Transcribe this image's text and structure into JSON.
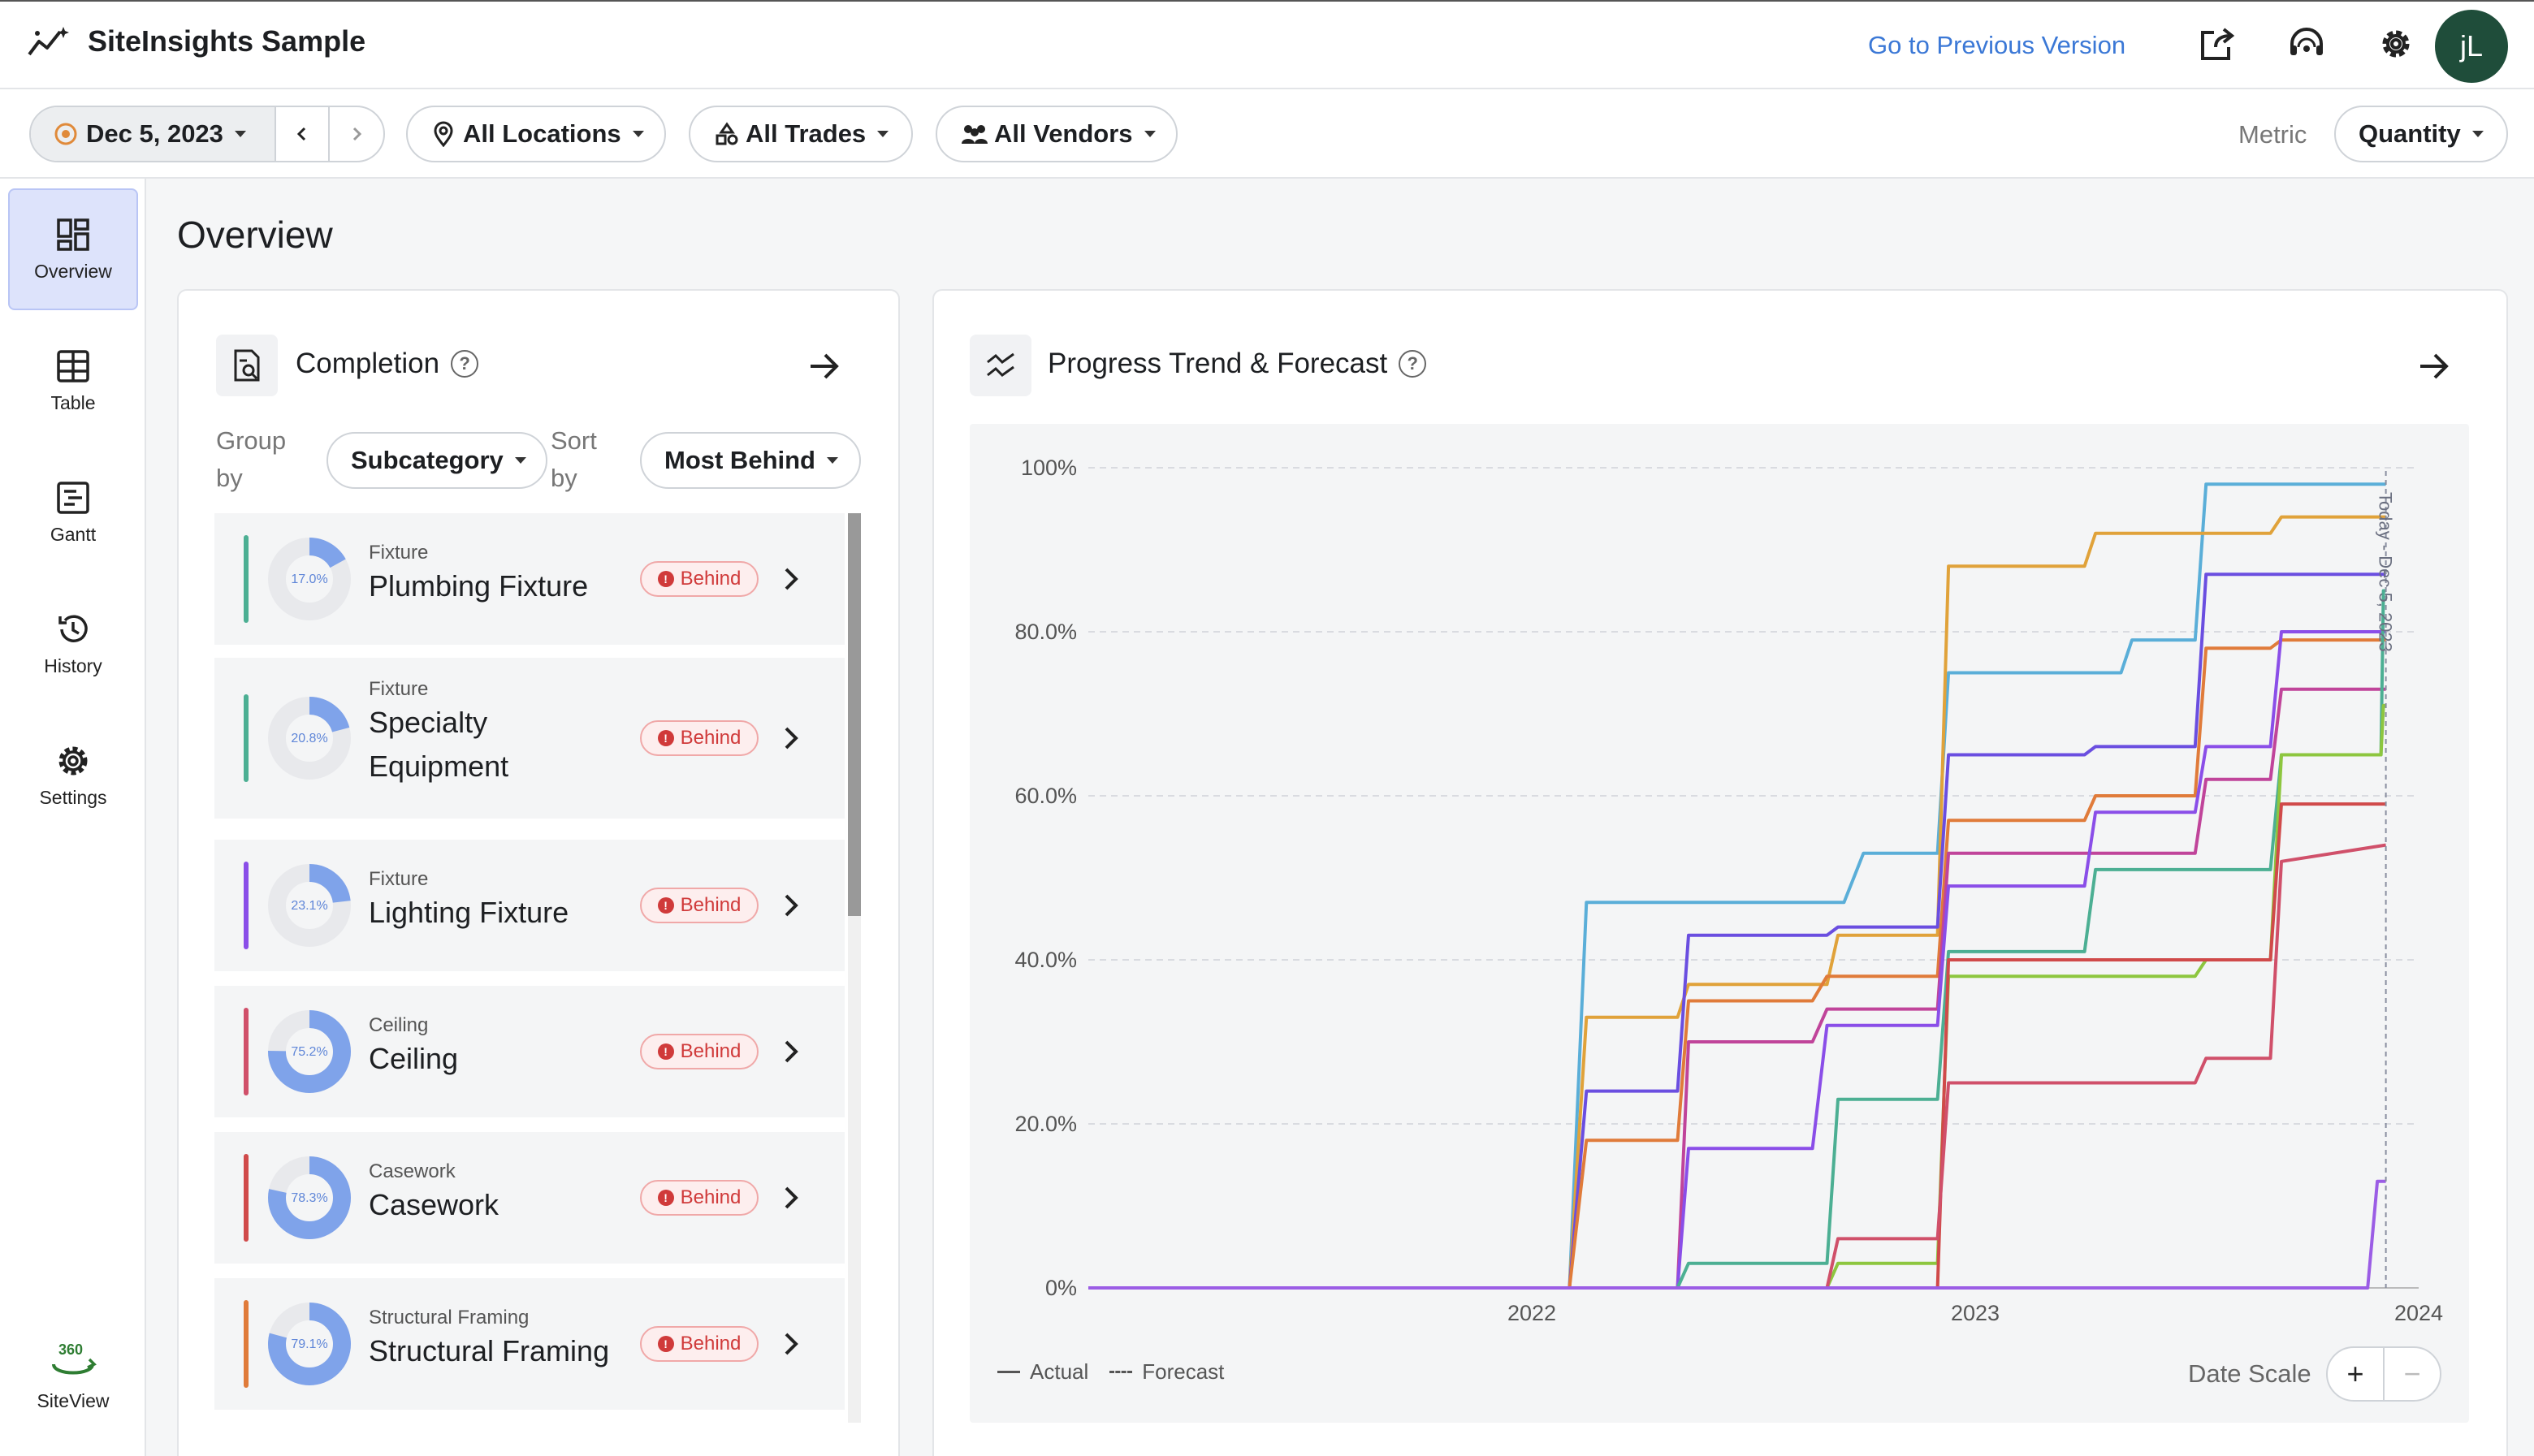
{
  "header": {
    "app_title": "SiteInsights Sample",
    "prev_version_link": "Go to Previous Version",
    "avatar_initials": "jL"
  },
  "filters": {
    "date": "Dec 5, 2023",
    "locations": "All Locations",
    "trades": "All Trades",
    "vendors": "All Vendors",
    "metric_label": "Metric",
    "metric_value": "Quantity"
  },
  "sidebar": {
    "items": [
      {
        "label": "Overview",
        "icon": "dashboard-icon",
        "active": true
      },
      {
        "label": "Table",
        "icon": "table-icon"
      },
      {
        "label": "Gantt",
        "icon": "gantt-icon"
      },
      {
        "label": "History",
        "icon": "history-icon"
      },
      {
        "label": "Settings",
        "icon": "gear-icon"
      }
    ],
    "siteview_label": "SiteView",
    "siteview_badge": "360"
  },
  "page": {
    "title": "Overview"
  },
  "completion": {
    "title": "Completion",
    "group_by_label_1": "Group",
    "group_by_label_2": "by",
    "group_by_value": "Subcategory",
    "sort_by_label_1": "Sort",
    "sort_by_label_2": "by",
    "sort_by_value": "Most Behind",
    "status_label": "Behind",
    "rows": [
      {
        "category": "Fixture",
        "name_lines": [
          "Plumbing Fixture"
        ],
        "percent": "17.0%",
        "value": 17.0,
        "color": "#4caf93"
      },
      {
        "category": "Fixture",
        "name_lines": [
          "Specialty",
          "Equipment"
        ],
        "percent": "20.8%",
        "value": 20.8,
        "color": "#4caf93"
      },
      {
        "category": "Fixture",
        "name_lines": [
          "Lighting Fixture"
        ],
        "percent": "23.1%",
        "value": 23.1,
        "color": "#8a4ee8"
      },
      {
        "category": "Ceiling",
        "name_lines": [
          "Ceiling"
        ],
        "percent": "75.2%",
        "value": 75.2,
        "color": "#d0506a"
      },
      {
        "category": "Casework",
        "name_lines": [
          "Casework"
        ],
        "percent": "78.3%",
        "value": 78.3,
        "color": "#d04a4a"
      },
      {
        "category": "Structural Framing",
        "name_lines": [
          "Structural Framing"
        ],
        "percent": "79.1%",
        "value": 79.1,
        "color": "#e07b3a"
      }
    ]
  },
  "trend": {
    "title": "Progress Trend & Forecast",
    "legend_actual": "Actual",
    "legend_forecast": "Forecast",
    "date_scale_label": "Date Scale",
    "zoom_in": "+",
    "zoom_out": "−",
    "today_label": "Today - Dec 5, 2023"
  },
  "chart_data": {
    "type": "line",
    "step": true,
    "x_ticks": [
      "2022",
      "2023",
      "2024"
    ],
    "xlim": [
      "2021-01-01",
      "2024-01-01"
    ],
    "y_ticks": [
      "0%",
      "20.0%",
      "40.0%",
      "60.0%",
      "80.0%",
      "100%"
    ],
    "ylim": [
      0,
      100
    ],
    "grid": true,
    "today": "2023-12-05",
    "series": [
      {
        "color": "#5aaed8",
        "points": [
          [
            "2021-01-01",
            0
          ],
          [
            "2022-02-01",
            0
          ],
          [
            "2022-02-15",
            47
          ],
          [
            "2022-09-15",
            47
          ],
          [
            "2022-10-01",
            53
          ],
          [
            "2022-12-01",
            53
          ],
          [
            "2022-12-10",
            75
          ],
          [
            "2023-05-01",
            75
          ],
          [
            "2023-05-10",
            79
          ],
          [
            "2023-07-01",
            79
          ],
          [
            "2023-07-10",
            98
          ],
          [
            "2023-12-05",
            98
          ]
        ]
      },
      {
        "color": "#e0a23a",
        "points": [
          [
            "2021-01-01",
            0
          ],
          [
            "2022-02-01",
            0
          ],
          [
            "2022-02-15",
            33
          ],
          [
            "2022-05-01",
            33
          ],
          [
            "2022-05-10",
            37
          ],
          [
            "2022-09-01",
            37
          ],
          [
            "2022-09-10",
            43
          ],
          [
            "2022-12-01",
            43
          ],
          [
            "2022-12-10",
            88
          ],
          [
            "2023-04-01",
            88
          ],
          [
            "2023-04-10",
            92
          ],
          [
            "2023-09-01",
            92
          ],
          [
            "2023-09-10",
            94
          ],
          [
            "2023-12-05",
            94
          ]
        ]
      },
      {
        "color": "#6a4ee0",
        "points": [
          [
            "2021-01-01",
            0
          ],
          [
            "2022-02-01",
            0
          ],
          [
            "2022-02-15",
            24
          ],
          [
            "2022-05-01",
            24
          ],
          [
            "2022-05-10",
            43
          ],
          [
            "2022-09-01",
            43
          ],
          [
            "2022-09-10",
            44
          ],
          [
            "2022-12-01",
            44
          ],
          [
            "2022-12-10",
            65
          ],
          [
            "2023-04-01",
            65
          ],
          [
            "2023-04-10",
            66
          ],
          [
            "2023-07-01",
            66
          ],
          [
            "2023-07-10",
            87
          ],
          [
            "2023-12-05",
            87
          ]
        ]
      },
      {
        "color": "#e07b3a",
        "points": [
          [
            "2021-01-01",
            0
          ],
          [
            "2022-02-01",
            0
          ],
          [
            "2022-02-15",
            18
          ],
          [
            "2022-05-01",
            18
          ],
          [
            "2022-05-10",
            35
          ],
          [
            "2022-08-20",
            35
          ],
          [
            "2022-09-01",
            38
          ],
          [
            "2022-12-01",
            38
          ],
          [
            "2022-12-10",
            57
          ],
          [
            "2023-04-01",
            57
          ],
          [
            "2023-04-10",
            60
          ],
          [
            "2023-07-01",
            60
          ],
          [
            "2023-07-10",
            78
          ],
          [
            "2023-09-01",
            78
          ],
          [
            "2023-09-10",
            79
          ],
          [
            "2023-12-05",
            79
          ]
        ]
      },
      {
        "color": "#c0449a",
        "points": [
          [
            "2021-01-01",
            0
          ],
          [
            "2022-05-01",
            0
          ],
          [
            "2022-05-10",
            30
          ],
          [
            "2022-08-20",
            30
          ],
          [
            "2022-09-01",
            34
          ],
          [
            "2022-12-01",
            34
          ],
          [
            "2022-12-10",
            53
          ],
          [
            "2023-07-01",
            53
          ],
          [
            "2023-07-10",
            62
          ],
          [
            "2023-09-01",
            62
          ],
          [
            "2023-09-10",
            73
          ],
          [
            "2023-12-05",
            73
          ]
        ]
      },
      {
        "color": "#8a4ee8",
        "points": [
          [
            "2021-01-01",
            0
          ],
          [
            "2022-05-01",
            0
          ],
          [
            "2022-05-10",
            17
          ],
          [
            "2022-08-20",
            17
          ],
          [
            "2022-09-01",
            32
          ],
          [
            "2022-12-01",
            32
          ],
          [
            "2022-12-10",
            49
          ],
          [
            "2023-04-01",
            49
          ],
          [
            "2023-04-10",
            58
          ],
          [
            "2023-07-01",
            58
          ],
          [
            "2023-07-10",
            66
          ],
          [
            "2023-09-01",
            66
          ],
          [
            "2023-09-10",
            80
          ],
          [
            "2023-12-05",
            80
          ]
        ]
      },
      {
        "color": "#4caf93",
        "points": [
          [
            "2021-01-01",
            0
          ],
          [
            "2022-05-01",
            0
          ],
          [
            "2022-05-10",
            3
          ],
          [
            "2022-09-01",
            3
          ],
          [
            "2022-09-10",
            23
          ],
          [
            "2022-12-01",
            23
          ],
          [
            "2022-12-10",
            41
          ],
          [
            "2023-04-01",
            41
          ],
          [
            "2023-04-10",
            51
          ],
          [
            "2023-09-01",
            51
          ],
          [
            "2023-09-10",
            65
          ],
          [
            "2023-12-01",
            65
          ],
          [
            "2023-12-03",
            85
          ],
          [
            "2023-12-05",
            85
          ]
        ]
      },
      {
        "color": "#8dc63f",
        "points": [
          [
            "2021-01-01",
            0
          ],
          [
            "2022-09-01",
            0
          ],
          [
            "2022-09-10",
            3
          ],
          [
            "2022-12-01",
            3
          ],
          [
            "2022-12-10",
            38
          ],
          [
            "2023-07-01",
            38
          ],
          [
            "2023-07-10",
            40
          ],
          [
            "2023-09-01",
            40
          ],
          [
            "2023-09-10",
            65
          ],
          [
            "2023-12-01",
            65
          ],
          [
            "2023-12-03",
            71
          ],
          [
            "2023-12-05",
            71
          ]
        ]
      },
      {
        "color": "#d04a4a",
        "points": [
          [
            "2021-01-01",
            0
          ],
          [
            "2022-12-01",
            0
          ],
          [
            "2022-12-10",
            40
          ],
          [
            "2023-09-01",
            40
          ],
          [
            "2023-09-10",
            59
          ],
          [
            "2023-12-05",
            59
          ]
        ]
      },
      {
        "color": "#d0506a",
        "points": [
          [
            "2021-01-01",
            0
          ],
          [
            "2022-09-01",
            0
          ],
          [
            "2022-09-10",
            6
          ],
          [
            "2022-12-01",
            6
          ],
          [
            "2022-12-10",
            25
          ],
          [
            "2023-07-01",
            25
          ],
          [
            "2023-07-10",
            28
          ],
          [
            "2023-09-01",
            28
          ],
          [
            "2023-09-10",
            52
          ],
          [
            "2023-12-05",
            54
          ]
        ]
      },
      {
        "color": "#9b5de5",
        "points": [
          [
            "2021-01-01",
            0
          ],
          [
            "2023-11-20",
            0
          ],
          [
            "2023-11-28",
            13
          ],
          [
            "2023-12-05",
            13
          ]
        ]
      }
    ]
  }
}
